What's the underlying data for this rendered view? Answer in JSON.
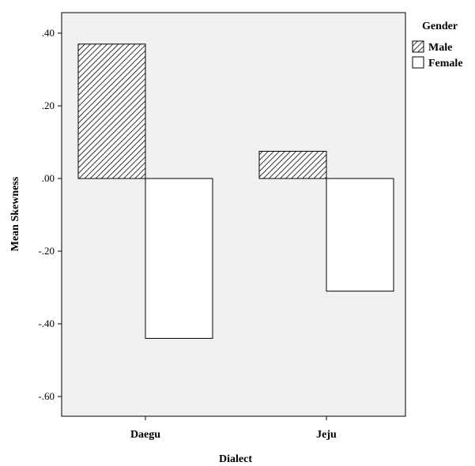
{
  "chart_data": {
    "type": "bar",
    "xlabel": "Dialect",
    "ylabel": "Mean Skewness",
    "categories": [
      "Daegu",
      "Jeju"
    ],
    "series": [
      {
        "name": "Male",
        "values": [
          0.37,
          0.075
        ],
        "fill": "hatch"
      },
      {
        "name": "Female",
        "values": [
          -0.44,
          -0.31
        ],
        "fill": "white"
      }
    ],
    "ylim": [
      -0.66,
      0.46
    ],
    "yticks": [
      0.4,
      0.2,
      0.0,
      -0.2,
      -0.4,
      -0.6
    ],
    "ytick_labels": [
      ".40",
      ".20",
      ".00",
      "-.20",
      "-.40",
      "-.60"
    ],
    "legend": {
      "title": "Gender",
      "position": "top-right outside"
    },
    "grid": false,
    "colors": {
      "plot_background": "#f0f0f0",
      "bar_stroke": "#000000",
      "female_fill": "#ffffff"
    }
  }
}
